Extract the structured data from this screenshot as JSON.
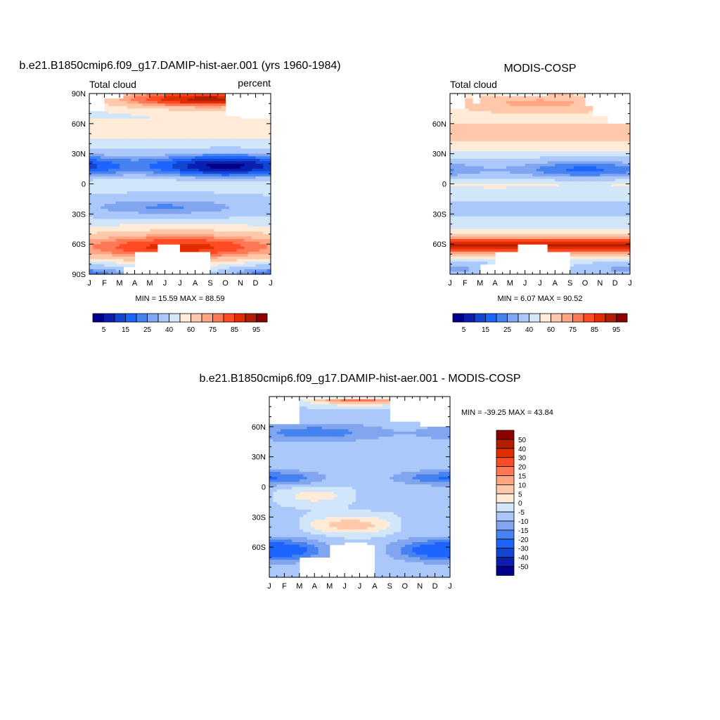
{
  "chart_data": [
    {
      "id": "model",
      "type": "heatmap",
      "title": "b.e21.B1850cmip6.f09_g17.DAMIP-hist-aer.001 (yrs 1960-1984)",
      "left_label": "Total cloud",
      "right_label": "percent",
      "x_ticks": [
        "J",
        "F",
        "M",
        "A",
        "M",
        "J",
        "J",
        "A",
        "S",
        "O",
        "N",
        "D",
        "J"
      ],
      "y_ticks": [
        "90N",
        "60N",
        "30N",
        "0",
        "30S",
        "60S",
        "90S"
      ],
      "ylim": [
        -90,
        90
      ],
      "stats_text": "MIN =  15.59 MAX =  88.59",
      "min": 15.59,
      "max": 88.59,
      "colorbar_labels": [
        "5",
        "15",
        "25",
        "40",
        "60",
        "75",
        "85",
        "95"
      ],
      "latitudes": [
        90,
        80,
        70,
        60,
        50,
        40,
        30,
        20,
        10,
        0,
        -10,
        -20,
        -30,
        -40,
        -50,
        -60,
        -70,
        -80,
        -90
      ],
      "zonal_mean_percent": [
        80,
        65,
        60,
        55,
        45,
        40,
        30,
        25,
        50,
        50,
        40,
        40,
        45,
        60,
        80,
        85,
        75,
        30,
        25
      ]
    },
    {
      "id": "obs",
      "type": "heatmap",
      "title": "MODIS-COSP",
      "left_label": "Total cloud",
      "x_ticks": [
        "J",
        "F",
        "M",
        "A",
        "M",
        "J",
        "J",
        "A",
        "S",
        "O",
        "N",
        "D",
        "J"
      ],
      "y_ticks": [
        "60N",
        "30N",
        "0",
        "30S",
        "60S"
      ],
      "ylim": [
        -90,
        90
      ],
      "stats_text": "MIN =   6.07 MAX =  90.52",
      "min": 6.07,
      "max": 90.52,
      "colorbar_labels": [
        "5",
        "15",
        "25",
        "40",
        "60",
        "75",
        "85",
        "95"
      ],
      "latitudes": [
        90,
        80,
        70,
        60,
        50,
        40,
        30,
        20,
        10,
        0,
        -10,
        -20,
        -30,
        -40,
        -50,
        -60,
        -70,
        -80,
        -90
      ],
      "zonal_mean_percent": [
        70,
        60,
        60,
        65,
        60,
        55,
        40,
        35,
        50,
        55,
        45,
        40,
        45,
        65,
        85,
        90,
        60,
        30,
        25
      ]
    },
    {
      "id": "diff",
      "type": "heatmap",
      "title": "b.e21.B1850cmip6.f09_g17.DAMIP-hist-aer.001 - MODIS-COSP",
      "x_ticks": [
        "J",
        "F",
        "M",
        "A",
        "M",
        "J",
        "J",
        "A",
        "S",
        "O",
        "N",
        "D",
        "J"
      ],
      "y_ticks": [
        "60N",
        "30N",
        "0",
        "30S",
        "60S"
      ],
      "ylim": [
        -90,
        90
      ],
      "stats_text": "MIN = -39.25 MAX =  43.84",
      "min": -39.25,
      "max": 43.84,
      "colorbar_labels": [
        "50",
        "40",
        "30",
        "20",
        "15",
        "10",
        "5",
        "0",
        "-5",
        "-10",
        "-15",
        "-20",
        "-30",
        "-40",
        "-50"
      ],
      "latitudes": [
        90,
        80,
        70,
        60,
        50,
        40,
        30,
        20,
        10,
        0,
        -10,
        -20,
        -30,
        -40,
        -50,
        -60,
        -70,
        -80,
        -90
      ],
      "zonal_mean_difference": [
        20,
        5,
        -5,
        -15,
        -10,
        -10,
        -10,
        -10,
        -15,
        -5,
        -5,
        -10,
        -5,
        5,
        -5,
        -10,
        -5,
        0,
        0
      ]
    }
  ],
  "colors": {
    "abs_scale": [
      "#00008b",
      "#0a1faf",
      "#1245d2",
      "#1e64ff",
      "#4682f0",
      "#82a5f0",
      "#aac8fa",
      "#d2e6fa",
      "#ffebd7",
      "#ffc8aa",
      "#ffa582",
      "#ff7855",
      "#ff4b23",
      "#e12d00",
      "#b41e00",
      "#8c0000"
    ],
    "diff_scale": [
      "#8c0000",
      "#b41e00",
      "#e12d00",
      "#ff4b23",
      "#ff7855",
      "#ffa582",
      "#ffc8aa",
      "#ffebd7",
      "#d2e6fa",
      "#aac8fa",
      "#82a5f0",
      "#4682f0",
      "#1e64ff",
      "#1245d2",
      "#0a1faf",
      "#00008b"
    ]
  }
}
